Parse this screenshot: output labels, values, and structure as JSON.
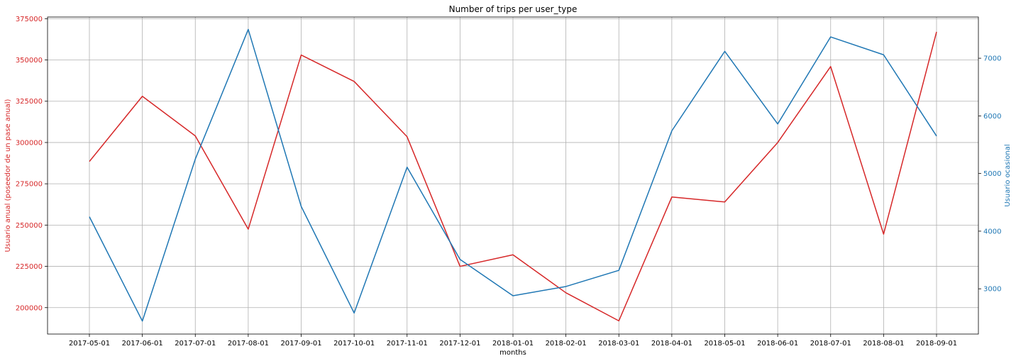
{
  "chart_data": {
    "type": "line",
    "title": "Number of trips per user_type",
    "xlabel": "months",
    "ylabel_left": "Usuario anual (poseedor de un pase anual)",
    "ylabel_right": "Usuario ocasional",
    "categories": [
      "2017-05-01",
      "2017-06-01",
      "2017-07-01",
      "2017-08-01",
      "2017-09-01",
      "2017-10-01",
      "2017-11-01",
      "2017-12-01",
      "2018-01-01",
      "2018-02-01",
      "2018-03-01",
      "2018-04-01",
      "2018-05-01",
      "2018-06-01",
      "2018-07-01",
      "2018-08-01",
      "2018-09-01"
    ],
    "left_axis": {
      "ylim": [
        184000,
        376000
      ],
      "ticks": [
        200000,
        225000,
        250000,
        275000,
        300000,
        325000,
        350000,
        375000
      ],
      "tick_labels": [
        "200000",
        "225000",
        "250000",
        "275000",
        "300000",
        "325000",
        "350000",
        "375000"
      ]
    },
    "right_axis": {
      "ylim": [
        2215,
        7715
      ],
      "ticks": [
        3000,
        4000,
        5000,
        6000,
        7000
      ],
      "tick_labels": [
        "3000",
        "4000",
        "5000",
        "6000",
        "7000"
      ]
    },
    "grid": true,
    "series": [
      {
        "name": "Usuario anual (poseedor de un pase anual)",
        "axis": "left",
        "color": "#d62728",
        "values": [
          288500,
          328000,
          304000,
          247500,
          353000,
          337000,
          303500,
          225000,
          232000,
          209000,
          192000,
          267000,
          264000,
          300000,
          346000,
          244500,
          367000
        ]
      },
      {
        "name": "Usuario ocasional",
        "axis": "right",
        "color": "#1f77b4",
        "values": [
          4250,
          2440,
          5250,
          7500,
          4430,
          2580,
          5110,
          3510,
          2880,
          3040,
          3320,
          5740,
          7120,
          5860,
          7370,
          7060,
          5650
        ]
      }
    ]
  }
}
